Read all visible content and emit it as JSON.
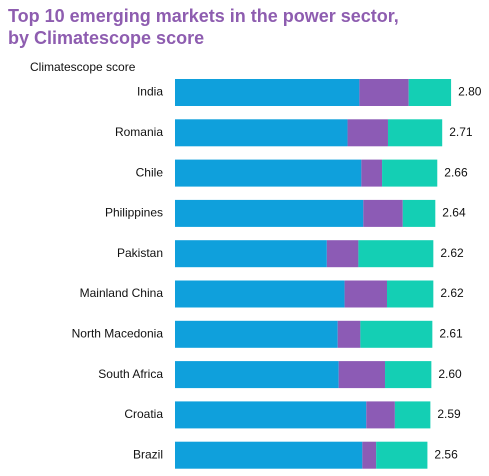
{
  "chart_data": {
    "type": "stacked-bar-horizontal",
    "title": [
      "Top 10 emerging markets in the power sector,",
      "by Climatescope score"
    ],
    "axis_label": "Climatescope score",
    "categories": [
      "India",
      "Romania",
      "Chile",
      "Philippines",
      "Pakistan",
      "Mainland China",
      "North Macedonia",
      "South Africa",
      "Croatia",
      "Brazil"
    ],
    "series": [
      {
        "color": "#0fa0dc",
        "values": [
          1.87,
          1.75,
          1.89,
          1.91,
          1.54,
          1.72,
          1.65,
          1.66,
          1.94,
          1.9
        ]
      },
      {
        "color": "#8c5bb5",
        "values": [
          0.5,
          0.41,
          0.21,
          0.4,
          0.32,
          0.43,
          0.23,
          0.47,
          0.29,
          0.14
        ]
      },
      {
        "color": "#14cfb4",
        "values": [
          0.43,
          0.55,
          0.56,
          0.33,
          0.76,
          0.47,
          0.73,
          0.47,
          0.36,
          0.52
        ]
      }
    ],
    "totals": [
      2.8,
      2.71,
      2.66,
      2.64,
      2.62,
      2.62,
      2.61,
      2.6,
      2.59,
      2.56
    ],
    "value_labels": [
      "2.80",
      "2.71",
      "2.66",
      "2.64",
      "2.62",
      "2.62",
      "2.61",
      "2.60",
      "2.59",
      "2.56"
    ]
  }
}
